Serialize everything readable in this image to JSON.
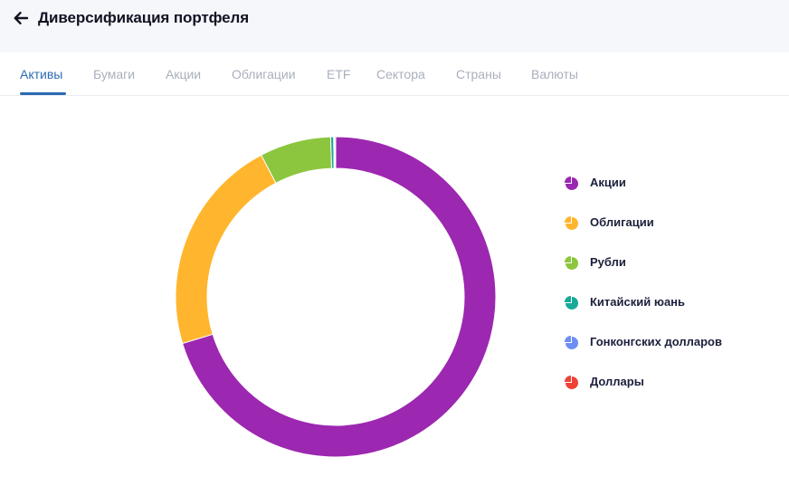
{
  "header": {
    "title": "Диверсификация портфеля",
    "back_icon": "arrow-left-icon"
  },
  "tabs": [
    {
      "label": "Активы",
      "active": true
    },
    {
      "label": "Бумаги",
      "active": false
    },
    {
      "label": "Акции",
      "active": false
    },
    {
      "label": "Облигации",
      "active": false
    },
    {
      "label": "ETF",
      "active": false
    },
    {
      "label": "Сектора",
      "active": false
    },
    {
      "label": "Страны",
      "active": false
    },
    {
      "label": "Валюты",
      "active": false
    }
  ],
  "colors": {
    "accent": "#2c6bb3",
    "page_background": "#f5f7fb"
  },
  "chart_data": {
    "type": "pie",
    "variant": "donut",
    "categories": [
      "Акции",
      "Облигации",
      "Рубли",
      "Китайский юань",
      "Гонконгских долларов",
      "Доллары"
    ],
    "values": [
      70.3,
      22.0,
      7.2,
      0.3,
      0.1,
      0.1
    ],
    "colors": [
      "#9c27b0",
      "#ffb62e",
      "#8cc63f",
      "#18a999",
      "#6f8ef5",
      "#ef4136"
    ],
    "legend_position": "right",
    "title": ""
  }
}
